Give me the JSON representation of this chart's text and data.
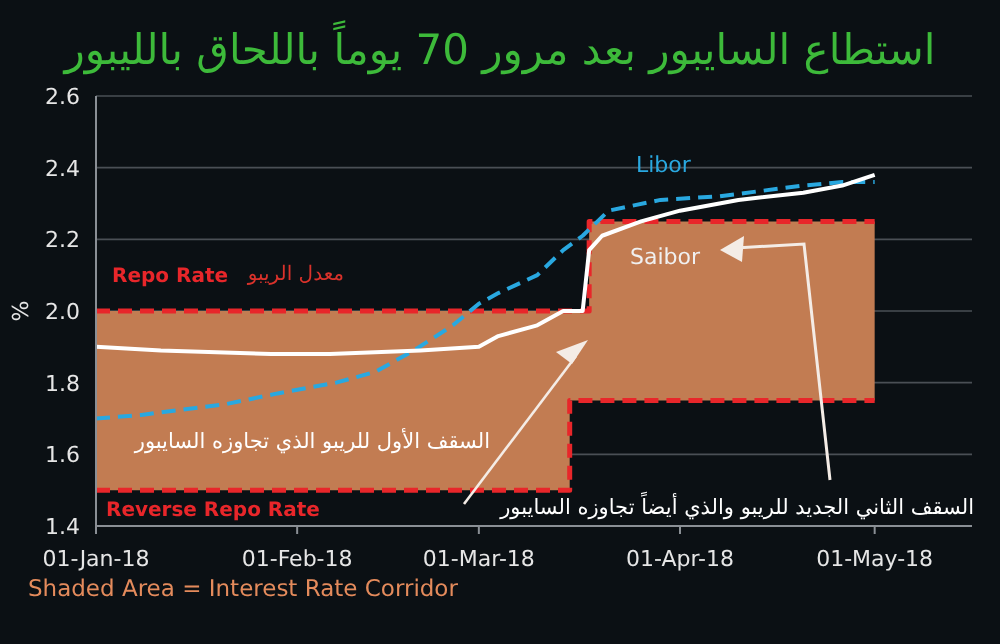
{
  "chart_data": {
    "type": "line",
    "title": "استطاع السايبور بعد مرور 70 يوماً باللحاق بالليبور",
    "ylabel": "%",
    "xlim": [
      "2018-01-01",
      "2018-05-16"
    ],
    "xticks": [
      {
        "value": "2018-01-01",
        "label": "01-Jan-18"
      },
      {
        "value": "2018-02-01",
        "label": "01-Feb-18"
      },
      {
        "value": "2018-03-01",
        "label": "01-Mar-18"
      },
      {
        "value": "2018-04-01",
        "label": "01-Apr-18"
      },
      {
        "value": "2018-05-01",
        "label": "01-May-18"
      }
    ],
    "ylim": [
      1.4,
      2.6
    ],
    "yticks": [
      {
        "value": 1.4,
        "label": "1.4"
      },
      {
        "value": 1.6,
        "label": "1.6"
      },
      {
        "value": 1.8,
        "label": "1.8"
      },
      {
        "value": 2,
        "label": "2.0"
      },
      {
        "value": 2.2,
        "label": "2.2"
      },
      {
        "value": 2.4,
        "label": "2.4"
      },
      {
        "value": 2.6,
        "label": "2.6"
      }
    ],
    "grid": "y",
    "series": [
      {
        "name": "Repo Rate",
        "type": "step",
        "color": "#e8262a",
        "line_style": "dashed",
        "x": [
          "2018-01-01",
          "2018-03-15",
          "2018-03-18",
          "2018-05-01"
        ],
        "values": [
          2.0,
          2.0,
          2.25,
          2.25
        ],
        "lower": [
          1.5,
          1.75,
          1.75,
          1.75
        ],
        "upper": [
          2.0,
          2.0,
          2.25,
          2.25
        ]
      },
      {
        "name": "Reverse Repo Rate",
        "type": "step",
        "color": "#e8262a",
        "line_style": "dashed",
        "x": [
          "2018-01-01",
          "2018-03-15",
          "2018-03-18",
          "2018-05-01"
        ],
        "values": [
          1.5,
          1.75,
          1.75,
          1.75
        ]
      },
      {
        "name": "Libor",
        "color": "#29a8e0",
        "line_style": "dashed",
        "x": [
          "2018-01-01",
          "2018-01-08",
          "2018-01-21",
          "2018-01-29",
          "2018-02-07",
          "2018-02-13",
          "2018-02-19",
          "2018-02-25",
          "2018-03-01",
          "2018-03-04",
          "2018-03-10",
          "2018-03-14",
          "2018-03-17",
          "2018-03-21",
          "2018-03-29",
          "2018-04-07",
          "2018-04-20",
          "2018-04-26",
          "2018-05-01"
        ],
        "values": [
          1.7,
          1.71,
          1.74,
          1.77,
          1.8,
          1.83,
          1.89,
          1.96,
          2.02,
          2.05,
          2.1,
          2.17,
          2.21,
          2.28,
          2.31,
          2.32,
          2.35,
          2.36,
          2.36
        ]
      },
      {
        "name": "Saibor",
        "color": "#ffffff",
        "line_style": "solid",
        "x": [
          "2018-01-01",
          "2018-01-11",
          "2018-01-28",
          "2018-02-06",
          "2018-02-20",
          "2018-03-01",
          "2018-03-04",
          "2018-03-10",
          "2018-03-14",
          "2018-03-17",
          "2018-03-18",
          "2018-03-20",
          "2018-03-26",
          "2018-04-01",
          "2018-04-10",
          "2018-04-20",
          "2018-04-26",
          "2018-05-01"
        ],
        "values": [
          1.9,
          1.89,
          1.88,
          1.88,
          1.89,
          1.9,
          1.93,
          1.96,
          2.0,
          2.0,
          2.17,
          2.21,
          2.25,
          2.28,
          2.31,
          2.33,
          2.35,
          2.38
        ]
      }
    ],
    "annotations": [
      "معدل الريبو",
      "السقف الأول للريبو الذي تجاوزه السايبور",
      "السقف الثاني الجديد للريبو والذي أيضاً تجاوزه السايبور",
      "Shaded Area = Interest Rate Corridor"
    ]
  }
}
